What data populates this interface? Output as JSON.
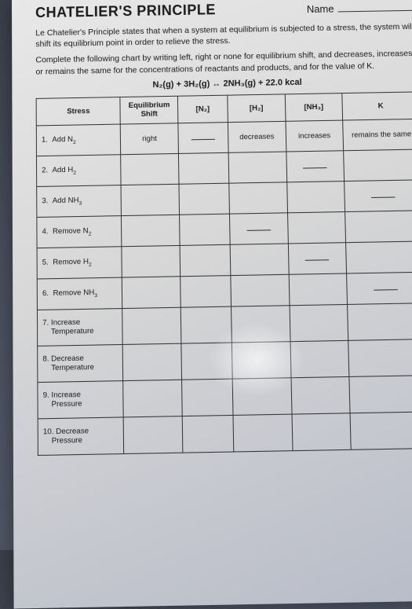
{
  "header": {
    "title": "CHATELIER'S PRINCIPLE",
    "name_label": "Name"
  },
  "paragraphs": {
    "p1": "Le Chatelier's Principle states that when a system at equilibrium is subjected to a stress, the system will shift its equilibrium point in order to relieve the stress.",
    "p2": "Complete the following chart by writing left, right or none for equilibrium shift, and decreases, increases or remains the same for the concentrations of reactants and products, and for the value of K."
  },
  "equation": "N₂(g) + 3H₂(g) ↔ 2NH₃(g) + 22.0 kcal",
  "table": {
    "headers": {
      "stress": "Stress",
      "shift": "Equilibrium Shift",
      "n2": "[N₂]",
      "h2": "[H₂]",
      "nh3": "[NH₃]",
      "k": "K"
    },
    "rows": [
      {
        "num": "1.",
        "label": "Add N₂",
        "shift": "right",
        "n2": "blank",
        "h2": "decreases",
        "nh3": "increases",
        "k": "remains the same"
      },
      {
        "num": "2.",
        "label": "Add H₂",
        "shift": "",
        "n2": "",
        "h2": "",
        "nh3": "blank",
        "k": ""
      },
      {
        "num": "3.",
        "label": "Add NH₃",
        "shift": "",
        "n2": "",
        "h2": "",
        "nh3": "",
        "k": "blank"
      },
      {
        "num": "4.",
        "label": "Remove N₂",
        "shift": "",
        "n2": "",
        "h2": "blank",
        "nh3": "",
        "k": ""
      },
      {
        "num": "5.",
        "label": "Remove H₂",
        "shift": "",
        "n2": "",
        "h2": "",
        "nh3": "blank",
        "k": ""
      },
      {
        "num": "6.",
        "label": "Remove NH₃",
        "shift": "",
        "n2": "",
        "h2": "",
        "nh3": "",
        "k": "blank"
      },
      {
        "num": "7.",
        "label": "Increase Temperature",
        "shift": "",
        "n2": "",
        "h2": "",
        "nh3": "",
        "k": ""
      },
      {
        "num": "8.",
        "label": "Decrease Temperature",
        "shift": "",
        "n2": "",
        "h2": "",
        "nh3": "",
        "k": ""
      },
      {
        "num": "9.",
        "label": "Increase Pressure",
        "shift": "",
        "n2": "",
        "h2": "",
        "nh3": "",
        "k": ""
      },
      {
        "num": "10.",
        "label": "Decrease Pressure",
        "shift": "",
        "n2": "",
        "h2": "",
        "nh3": "",
        "k": ""
      }
    ]
  }
}
